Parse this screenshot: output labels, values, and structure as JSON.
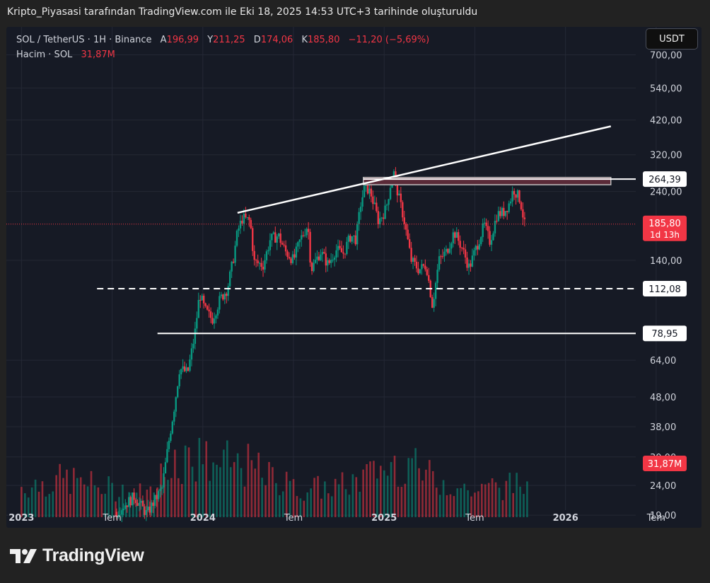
{
  "caption": "Kripto_Piyasasi tarafından TradingView.com ile Eki 18, 2025 14:53 UTC+3 tarihinde oluşturuldu",
  "legend": {
    "symbol": "SOL / TetherUS · 1H · Binance",
    "open_key": "A",
    "open": "196,99",
    "high_key": "Y",
    "high": "211,25",
    "low_key": "D",
    "low": "174,06",
    "close_key": "K",
    "close": "185,80",
    "change": "−11,20 (−5,69%)",
    "volume_label": "Hacim · SOL",
    "volume_value": "31,87M"
  },
  "currency_button": "USDT",
  "footer": {
    "brand": "TradingView"
  },
  "colors": {
    "background": "#161a25",
    "up": "#089981",
    "down": "#f23645",
    "grid": "#242835",
    "label_bg": "#ffffff",
    "price_label_bg": "#f23645"
  },
  "chart_data": {
    "type": "candlestick",
    "y_scale": "log",
    "ylim": [
      17.5,
      780
    ],
    "y_ticks": [
      "700,00",
      "540,00",
      "420,00",
      "320,00",
      "240,00",
      "140,00",
      "64,00",
      "48,00",
      "38,00",
      "30,00",
      "24,00",
      "19,00"
    ],
    "x_ticks": [
      "2023",
      "Tem",
      "2024",
      "Tem",
      "2025",
      "Tem",
      "2026",
      "Tem"
    ],
    "x_tick_dates": [
      "2023-01",
      "2023-07",
      "2024-01",
      "2024-07",
      "2025-01",
      "2025-07",
      "2026-01",
      "2026-07"
    ],
    "xlim": [
      "2022-12",
      "2026-10"
    ],
    "price_path": [
      [
        "2023-07-10",
        19.5
      ],
      [
        "2023-08-15",
        22.0
      ],
      [
        "2023-09-10",
        19.2
      ],
      [
        "2023-10-10",
        23.5
      ],
      [
        "2023-10-25",
        35.0
      ],
      [
        "2023-11-05",
        45.0
      ],
      [
        "2023-11-15",
        60.0
      ],
      [
        "2023-12-01",
        58.0
      ],
      [
        "2023-12-15",
        78.0
      ],
      [
        "2023-12-25",
        108.0
      ],
      [
        "2024-01-05",
        95.0
      ],
      [
        "2024-01-20",
        88.0
      ],
      [
        "2024-02-05",
        103.0
      ],
      [
        "2024-02-20",
        112.0
      ],
      [
        "2024-03-01",
        140.0
      ],
      [
        "2024-03-10",
        175.0
      ],
      [
        "2024-03-20",
        195.0
      ],
      [
        "2024-04-05",
        190.0
      ],
      [
        "2024-04-13",
        138.0
      ],
      [
        "2024-05-01",
        135.0
      ],
      [
        "2024-05-15",
        165.0
      ],
      [
        "2024-06-01",
        170.0
      ],
      [
        "2024-06-15",
        150.0
      ],
      [
        "2024-07-01",
        140.0
      ],
      [
        "2024-07-15",
        165.0
      ],
      [
        "2024-07-30",
        185.0
      ],
      [
        "2024-08-06",
        130.0
      ],
      [
        "2024-08-25",
        150.0
      ],
      [
        "2024-09-10",
        135.0
      ],
      [
        "2024-09-25",
        152.0
      ],
      [
        "2024-10-10",
        148.0
      ],
      [
        "2024-10-25",
        170.0
      ],
      [
        "2024-11-05",
        165.0
      ],
      [
        "2024-11-15",
        220.0
      ],
      [
        "2024-11-24",
        252.0
      ],
      [
        "2024-12-05",
        235.0
      ],
      [
        "2024-12-20",
        190.0
      ],
      [
        "2025-01-05",
        210.0
      ],
      [
        "2025-01-19",
        285.0
      ],
      [
        "2025-01-30",
        230.0
      ],
      [
        "2025-02-10",
        195.0
      ],
      [
        "2025-02-25",
        140.0
      ],
      [
        "2025-03-10",
        130.0
      ],
      [
        "2025-03-25",
        135.0
      ],
      [
        "2025-04-07",
        98.0
      ],
      [
        "2025-04-20",
        140.0
      ],
      [
        "2025-05-05",
        150.0
      ],
      [
        "2025-05-20",
        175.0
      ],
      [
        "2025-06-05",
        155.0
      ],
      [
        "2025-06-20",
        132.0
      ],
      [
        "2025-07-01",
        150.0
      ],
      [
        "2025-07-20",
        185.0
      ],
      [
        "2025-08-01",
        162.0
      ],
      [
        "2025-08-15",
        200.0
      ],
      [
        "2025-08-30",
        205.0
      ],
      [
        "2025-09-10",
        220.0
      ],
      [
        "2025-09-18",
        245.0
      ],
      [
        "2025-10-01",
        225.0
      ],
      [
        "2025-10-10",
        185.0
      ]
    ],
    "volume_profile": [
      [
        "2023-01",
        12
      ],
      [
        "2023-04",
        15
      ],
      [
        "2023-07",
        11
      ],
      [
        "2023-10",
        9
      ],
      [
        "2023-11",
        24
      ],
      [
        "2024-01",
        22
      ],
      [
        "2024-04",
        20
      ],
      [
        "2024-07",
        11
      ],
      [
        "2024-10",
        12
      ],
      [
        "2024-12",
        16
      ],
      [
        "2025-02",
        22
      ],
      [
        "2025-04",
        16
      ],
      [
        "2025-07",
        10
      ],
      [
        "2025-10",
        13
      ]
    ],
    "horizontal_levels": [
      {
        "label": "264,39",
        "value": 264.39,
        "style": "solid",
        "from": "2024-11-20",
        "to": "2026-10"
      },
      {
        "label": "112,08",
        "value": 112.08,
        "style": "dashed",
        "from": "2023-06",
        "to": "2026-10"
      },
      {
        "label": "78,95",
        "value": 78.95,
        "style": "solid",
        "from": "2023-10",
        "to": "2026-10"
      }
    ],
    "resistance_zone": {
      "from": "2024-11-20",
      "to": "2026-04",
      "low": 253,
      "high": 268
    },
    "trend_lines": [
      {
        "from": [
          "2024-03-10",
          203
        ],
        "to": [
          "2026-04",
          400
        ]
      }
    ],
    "current_price": {
      "label": "185,80",
      "countdown": "1d 13h",
      "value": 185.8
    },
    "volume_label": "31,87M"
  }
}
